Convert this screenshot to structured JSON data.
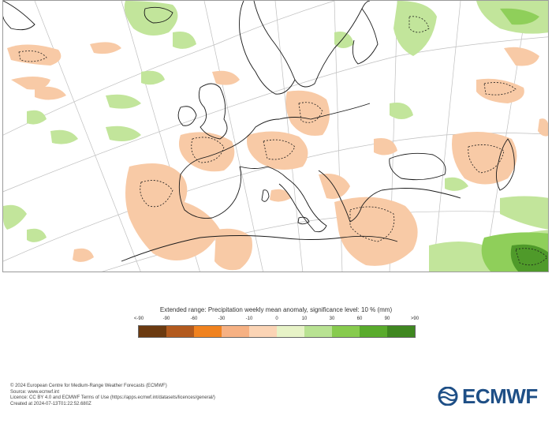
{
  "legend": {
    "title": "Extended range: Precipitation weekly mean anomaly, significance level: 10 % (mm)",
    "ticks": [
      "<-90",
      "-90",
      "-60",
      "-30",
      "-10",
      "0",
      "10",
      "30",
      "60",
      "90",
      ">90"
    ],
    "colors": [
      "#6b3a10",
      "#b25a1e",
      "#f0821f",
      "#f6b183",
      "#fbd4b5",
      "#e7f3c7",
      "#b8e292",
      "#87cb4e",
      "#59ab2c",
      "#3f8720"
    ]
  },
  "credits": {
    "line1": "© 2024 European Centre for Medium-Range Weather Forecasts (ECMWF)",
    "line2": "Source: www.ecmwf.int",
    "line3": "Licence: CC BY 4.0 and ECMWF Terms of Use (https://apps.ecmwf.int/datasets/licences/general/)",
    "line4": "Created at 2024-07-13T01:22:52.680Z"
  },
  "logo": {
    "text": "ECMWF",
    "color": "#1e4f86"
  },
  "map": {
    "colors": {
      "dry": "#f8caa6",
      "wet": "#c2e59b",
      "wet_strong": "#8fcf5a",
      "wet_darkest": "#4f9a2a",
      "coast": "#1a1a1a",
      "border": "#9a9a9a",
      "grid": "#bfbfbf"
    }
  }
}
